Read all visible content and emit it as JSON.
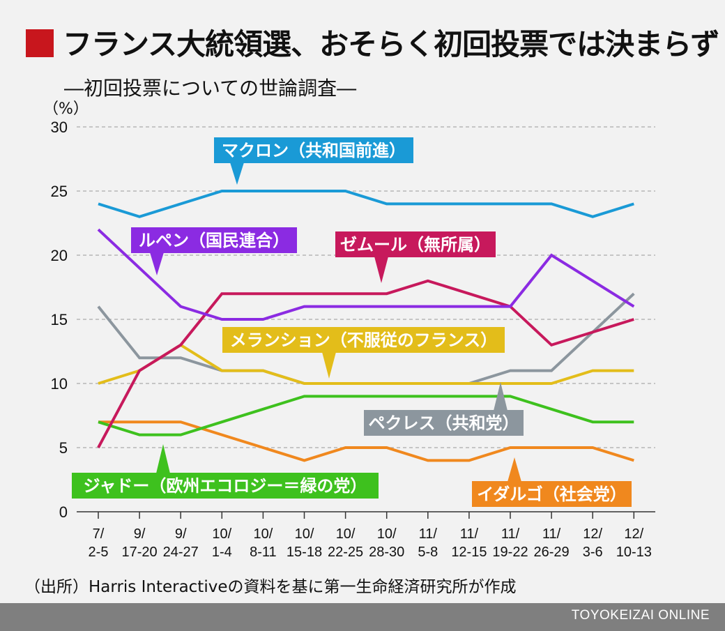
{
  "header": {
    "title": "フランス大統領選、おそらく初回投票では決まらず",
    "subtitle": "―初回投票についての世論調査―",
    "accent_color": "#c8161d"
  },
  "source_note": "（出所）Harris Interactiveの資料を基に第一生命経済研究所が作成",
  "footer": {
    "brand": "TOYOKEIZAI ONLINE"
  },
  "chart_data": {
    "type": "line",
    "ylabel": "（%）",
    "ylim": [
      0,
      30
    ],
    "yticks": [
      0,
      5,
      10,
      15,
      20,
      25,
      30
    ],
    "grid": "dashed horizontal",
    "categories": [
      [
        "7/",
        "2-5"
      ],
      [
        "9/",
        "17-20"
      ],
      [
        "9/",
        "24-27"
      ],
      [
        "10/",
        "1-4"
      ],
      [
        "10/",
        "8-11"
      ],
      [
        "10/",
        "15-18"
      ],
      [
        "10/",
        "22-25"
      ],
      [
        "10/",
        "28-30"
      ],
      [
        "11/",
        "5-8"
      ],
      [
        "11/",
        "12-15"
      ],
      [
        "11/",
        "19-22"
      ],
      [
        "11/",
        "26-29"
      ],
      [
        "12/",
        "3-6"
      ],
      [
        "12/",
        "10-13"
      ]
    ],
    "series": [
      {
        "name": "マクロン（共和国前進）",
        "color": "#1a9ad6",
        "values": [
          24,
          23,
          24,
          25,
          25,
          25,
          25,
          24,
          24,
          24,
          24,
          24,
          23,
          24
        ]
      },
      {
        "name": "ルペン（国民連合）",
        "color": "#8b2be2",
        "values": [
          22,
          19,
          16,
          15,
          15,
          16,
          16,
          16,
          16,
          16,
          16,
          20,
          18,
          16
        ]
      },
      {
        "name": "ゼムール（無所属）",
        "color": "#c7195c",
        "values": [
          5,
          11,
          13,
          17,
          17,
          17,
          17,
          17,
          18,
          17,
          16,
          13,
          14,
          15
        ]
      },
      {
        "name": "メランション（不服従のフランス）",
        "color": "#e3bd1a",
        "values": [
          10,
          11,
          13,
          11,
          11,
          10,
          10,
          10,
          10,
          10,
          10,
          10,
          11,
          11
        ]
      },
      {
        "name": "ペクレス（共和党）",
        "color": "#8c969e",
        "values": [
          16,
          12,
          12,
          11,
          11,
          10,
          10,
          10,
          10,
          10,
          11,
          11,
          14,
          17
        ]
      },
      {
        "name": "ジャドー（欧州エコロジー＝緑の党）",
        "color": "#3ec11e",
        "values": [
          7,
          6,
          6,
          7,
          8,
          9,
          9,
          9,
          9,
          9,
          9,
          8,
          7,
          7
        ]
      },
      {
        "name": "イダルゴ（社会党）",
        "color": "#f0881e",
        "values": [
          7,
          7,
          7,
          6,
          5,
          4,
          5,
          5,
          4,
          4,
          5,
          5,
          5,
          4
        ]
      }
    ],
    "labels": [
      {
        "series": 0,
        "text": "マクロン（共和国前進）",
        "pointer": "down"
      },
      {
        "series": 1,
        "text": "ルペン（国民連合）",
        "pointer": "down"
      },
      {
        "series": 2,
        "text": "ゼムール（無所属）",
        "pointer": "down"
      },
      {
        "series": 3,
        "text": "メランション（不服従のフランス）",
        "pointer": "down"
      },
      {
        "series": 4,
        "text": "ペクレス（共和党）",
        "pointer": "up"
      },
      {
        "series": 5,
        "text": "ジャドー（欧州エコロジー＝緑の党）",
        "pointer": "up"
      },
      {
        "series": 6,
        "text": "イダルゴ（社会党）",
        "pointer": "up"
      }
    ]
  }
}
